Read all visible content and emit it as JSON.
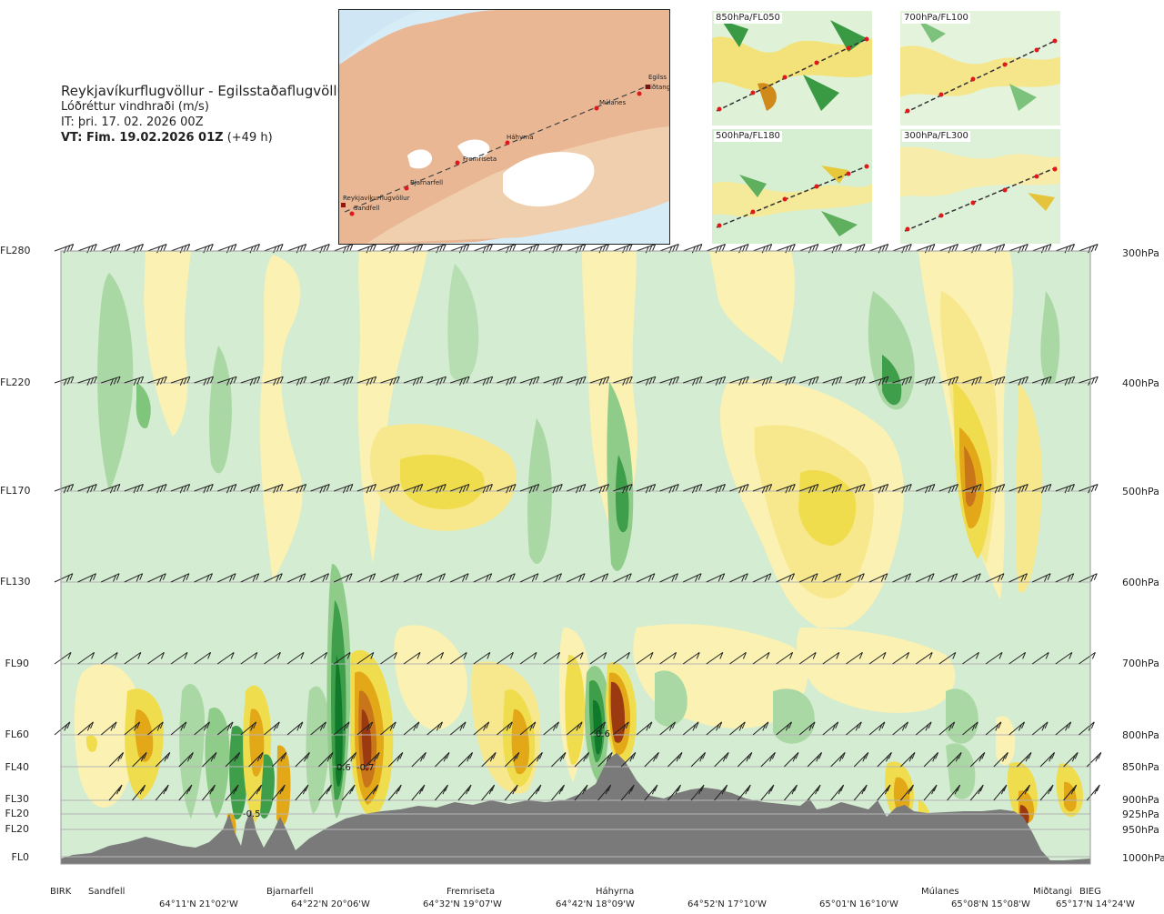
{
  "header": {
    "route": "Reykjavíkurflugvöllur - Egilsstaðaflugvöllur",
    "variable": "Lóðréttur vindhraði (m/s)",
    "it": "IT: þri. 17. 02. 2026 00Z",
    "vt_bold": "VT: Fim. 19.02.2026 01Z",
    "vt_offset": " (+49 h)"
  },
  "map": {
    "waypoints": [
      "Reykjavíkurflugvöllur",
      "Sandfell",
      "Bjarnarfell",
      "Fremriseta",
      "Háhyrna",
      "Múlanes",
      "Miðtangi",
      "Egilss"
    ]
  },
  "thumbnails": [
    {
      "label": "850hPa/FL050"
    },
    {
      "label": "700hPa/FL100"
    },
    {
      "label": "500hPa/FL180"
    },
    {
      "label": "300hPa/FL300"
    }
  ],
  "levels": {
    "fl": [
      "FL280",
      "FL220",
      "FL170",
      "FL130",
      "FL90",
      "FL60",
      "FL40",
      "FL30",
      "FL20",
      "FL20",
      "FL0"
    ],
    "hpa": [
      "300hPa",
      "400hPa",
      "500hPa",
      "600hPa",
      "700hPa",
      "800hPa",
      "850hPa",
      "900hPa",
      "925hPa",
      "950hPa",
      "1000hPa"
    ]
  },
  "bottom": {
    "names": [
      "BIRK",
      "Sandfell",
      "Bjarnarfell",
      "Fremriseta",
      "Háhyrna",
      "Múlanes",
      "Miðtangi",
      "BIEG"
    ],
    "coords": [
      "64°11'N 21°02'W",
      "64°22'N 20°06'W",
      "64°32'N 19°07'W",
      "64°42'N 18°09'W",
      "64°52'N 17°10'W",
      "65°01'N 16°10'W",
      "65°08'N 15°08'W",
      "65°17'N 14°24'W"
    ]
  },
  "chart_data": {
    "type": "heatmap",
    "title": "Reykjavíkurflugvöllur - Egilsstaðaflugvöllur",
    "variable": "Lóðréttur vindhraði (m/s)",
    "y_levels_hpa": [
      300,
      400,
      500,
      600,
      700,
      800,
      850,
      900,
      925,
      950,
      1000
    ],
    "value_labels": [
      "-0.5",
      "0.6",
      "-0.7",
      "0.6"
    ],
    "colors": {
      "neg_light": "#cde9cd",
      "neg_mid": "#9fd39f",
      "neg_dark": "#3f9e4a",
      "neg_extreme": "#0f7a2a",
      "pos_light": "#fbf3b6",
      "pos_mid": "#f2df55",
      "pos_dark": "#e2a817",
      "pos_extreme": "#9b3a10",
      "terrain": "#7a7a7a"
    }
  }
}
